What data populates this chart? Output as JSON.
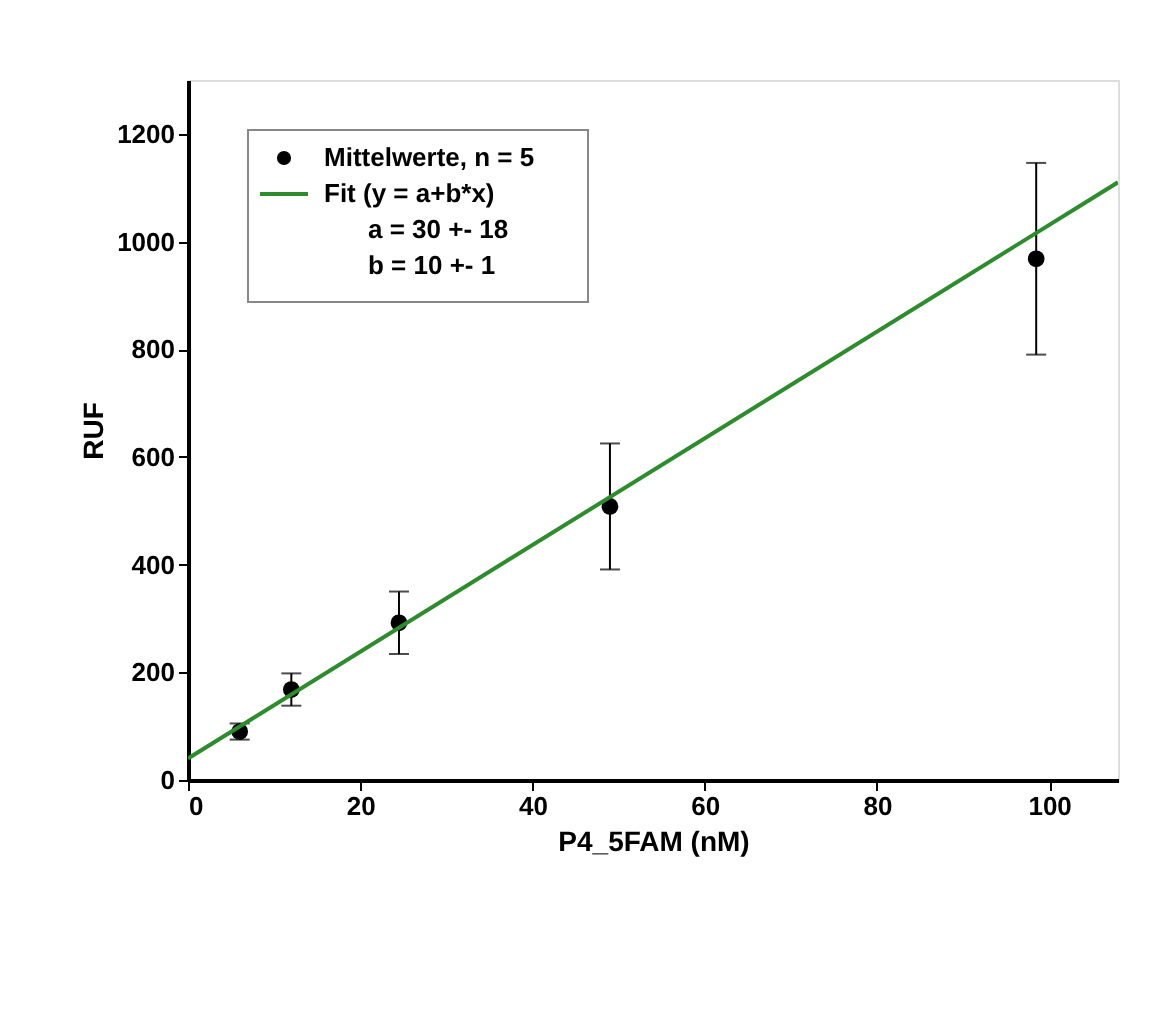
{
  "chart_data": {
    "type": "scatter",
    "xlabel": "P4_5FAM (nM)",
    "ylabel": "RUF",
    "x": [
      6,
      12,
      24.5,
      49,
      98.5
    ],
    "series": [
      {
        "name": "Mittelwerte, n = 5",
        "marker": "circle",
        "color": "#000000",
        "values": [
          90,
          168,
          292,
          508,
          968
        ],
        "errors": [
          15,
          30,
          58,
          117,
          178
        ]
      },
      {
        "name": "Fit (y = a+b*x)",
        "type": "line",
        "color": "#2e8b2e",
        "x": [
          0,
          108
        ],
        "values": [
          40,
          1110
        ]
      }
    ],
    "annotations": [
      "a = 30 +- 18",
      "b = 10 +- 1"
    ],
    "xlim": [
      0,
      108
    ],
    "ylim": [
      0,
      1300
    ],
    "xticks": [
      0,
      20,
      40,
      60,
      80,
      100
    ],
    "yticks": [
      0,
      200,
      400,
      600,
      800,
      1000,
      1200
    ],
    "grid": false,
    "legend": "top left"
  }
}
